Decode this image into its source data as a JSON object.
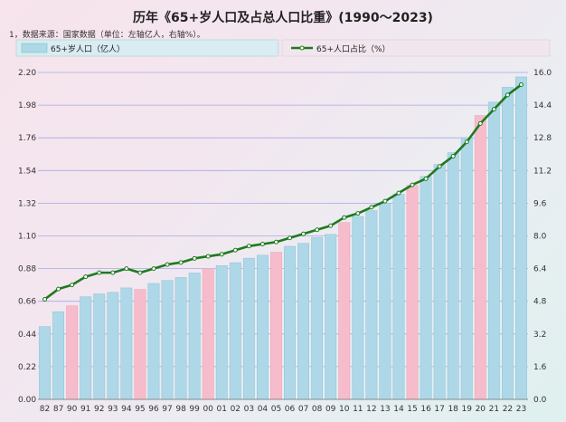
{
  "title": "历年《65+岁人口及占总人口比重》(1990～2023)",
  "note": "1，数据来源：国家数据（单位：左轴亿人，右轴%）。",
  "colors": {
    "bar": "#aed8e8",
    "bar_highlight": "#f6bccb",
    "line": "#1e7a1e",
    "marker_fill": "#ffffff",
    "grid": "#a8a8e6"
  },
  "chart_data": {
    "type": "bar",
    "categories": [
      "82",
      "87",
      "90",
      "91",
      "92",
      "93",
      "94",
      "95",
      "96",
      "97",
      "98",
      "99",
      "00",
      "01",
      "02",
      "03",
      "04",
      "05",
      "06",
      "07",
      "08",
      "09",
      "10",
      "11",
      "12",
      "13",
      "14",
      "15",
      "16",
      "17",
      "18",
      "19",
      "20",
      "21",
      "22",
      "23"
    ],
    "highlighted_categories": [
      "90",
      "95",
      "00",
      "05",
      "10",
      "15",
      "20"
    ],
    "series": [
      {
        "name": "65+岁人口（亿人）",
        "axis": "left",
        "type": "bar",
        "values": [
          0.49,
          0.59,
          0.63,
          0.69,
          0.71,
          0.72,
          0.75,
          0.74,
          0.78,
          0.8,
          0.82,
          0.85,
          0.88,
          0.9,
          0.92,
          0.95,
          0.97,
          0.99,
          1.03,
          1.05,
          1.09,
          1.11,
          1.19,
          1.23,
          1.27,
          1.32,
          1.38,
          1.44,
          1.5,
          1.58,
          1.66,
          1.76,
          1.91,
          2.0,
          2.1,
          2.17
        ]
      },
      {
        "name": "65+人口占比（%）",
        "axis": "right",
        "type": "line",
        "values": [
          4.9,
          5.4,
          5.6,
          6.0,
          6.2,
          6.2,
          6.4,
          6.2,
          6.4,
          6.6,
          6.7,
          6.9,
          7.0,
          7.1,
          7.3,
          7.5,
          7.6,
          7.7,
          7.9,
          8.1,
          8.3,
          8.5,
          8.9,
          9.1,
          9.4,
          9.7,
          10.1,
          10.5,
          10.8,
          11.4,
          11.9,
          12.6,
          13.5,
          14.2,
          14.9,
          15.4
        ]
      }
    ],
    "y_left": {
      "ticks": [
        "2.20",
        "1.98",
        "1.76",
        "1.54",
        "1.32",
        "1.10",
        "0.88",
        "0.66",
        "0.44",
        "0.22",
        "0.00"
      ],
      "min": 0,
      "max": 2.2
    },
    "y_right": {
      "ticks": [
        "16.0",
        "14.4",
        "12.8",
        "11.2",
        "9.6",
        "8.0",
        "6.4",
        "4.8",
        "3.2",
        "1.6",
        "0.0"
      ],
      "min": 0,
      "max": 16
    },
    "grid": true,
    "legend_position": "top"
  }
}
